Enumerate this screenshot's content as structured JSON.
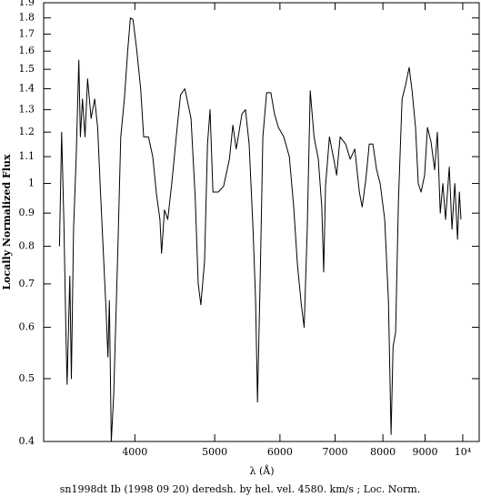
{
  "chart_data": {
    "type": "line",
    "xlabel": "λ (Å)",
    "ylabel": "Locally Normalized Flux",
    "caption": "sn1998dt Ib (1998 09 20) deredsh. by hel. vel.  4580. km/s ;  Loc. Norm.",
    "xscale": "log",
    "yscale": "log",
    "color": "#000000",
    "xlim": [
      3100,
      10470
    ],
    "ylim": [
      0.4,
      1.9
    ],
    "xticks": [
      4000,
      5000,
      6000,
      7000,
      8000,
      9000,
      {
        "value": 10000,
        "label": "10⁴"
      }
    ],
    "yticks": [
      0.4,
      0.5,
      0.6,
      0.7,
      0.8,
      0.9,
      1,
      1.1,
      1.2,
      1.3,
      1.4,
      1.5,
      1.6,
      1.7,
      1.8,
      1.9
    ],
    "x": [
      3240,
      3260,
      3280,
      3300,
      3310,
      3335,
      3350,
      3370,
      3395,
      3420,
      3435,
      3455,
      3480,
      3505,
      3540,
      3575,
      3605,
      3630,
      3655,
      3690,
      3710,
      3725,
      3745,
      3770,
      3815,
      3845,
      3885,
      3920,
      3950,
      3980,
      4020,
      4065,
      4100,
      4155,
      4205,
      4250,
      4290,
      4310,
      4345,
      4385,
      4435,
      4505,
      4545,
      4600,
      4680,
      4735,
      4775,
      4810,
      4860,
      4900,
      4935,
      4975,
      5050,
      5125,
      5210,
      5260,
      5310,
      5395,
      5450,
      5505,
      5565,
      5605,
      5635,
      5680,
      5720,
      5780,
      5850,
      5910,
      5975,
      6065,
      6160,
      6235,
      6300,
      6370,
      6420,
      6475,
      6530,
      6600,
      6680,
      6745,
      6780,
      6815,
      6890,
      6975,
      7030,
      7100,
      7210,
      7300,
      7395,
      7490,
      7550,
      7625,
      7700,
      7780,
      7860,
      7940,
      8040,
      8125,
      8185,
      8230,
      8290,
      8355,
      8440,
      8525,
      8610,
      8680,
      8765,
      8830,
      8900,
      8990,
      9060,
      9150,
      9245,
      9315,
      9390,
      9460,
      9530,
      9630,
      9705,
      9780,
      9855,
      9905,
      9950
    ],
    "values": [
      0.8,
      1.2,
      0.88,
      0.58,
      0.49,
      0.72,
      0.5,
      0.85,
      1.1,
      1.55,
      1.18,
      1.35,
      1.18,
      1.45,
      1.26,
      1.35,
      1.22,
      1.0,
      0.83,
      0.64,
      0.54,
      0.66,
      0.4,
      0.47,
      0.8,
      1.18,
      1.35,
      1.6,
      1.8,
      1.79,
      1.61,
      1.4,
      1.18,
      1.18,
      1.1,
      0.96,
      0.88,
      0.78,
      0.91,
      0.88,
      1.0,
      1.23,
      1.37,
      1.4,
      1.26,
      0.95,
      0.7,
      0.65,
      0.76,
      1.15,
      1.3,
      0.97,
      0.97,
      0.99,
      1.09,
      1.23,
      1.13,
      1.28,
      1.3,
      1.15,
      0.85,
      0.66,
      0.46,
      0.73,
      1.18,
      1.38,
      1.38,
      1.28,
      1.22,
      1.18,
      1.1,
      0.92,
      0.75,
      0.65,
      0.6,
      0.85,
      1.39,
      1.18,
      1.09,
      0.92,
      0.73,
      0.99,
      1.18,
      1.09,
      1.03,
      1.18,
      1.15,
      1.09,
      1.13,
      0.97,
      0.92,
      1.01,
      1.15,
      1.15,
      1.05,
      1.0,
      0.88,
      0.66,
      0.41,
      0.56,
      0.59,
      0.94,
      1.35,
      1.42,
      1.51,
      1.39,
      1.22,
      1.0,
      0.97,
      1.03,
      1.22,
      1.16,
      1.05,
      1.2,
      0.9,
      1.0,
      0.88,
      1.06,
      0.85,
      1.0,
      0.82,
      0.97,
      0.88
    ]
  }
}
